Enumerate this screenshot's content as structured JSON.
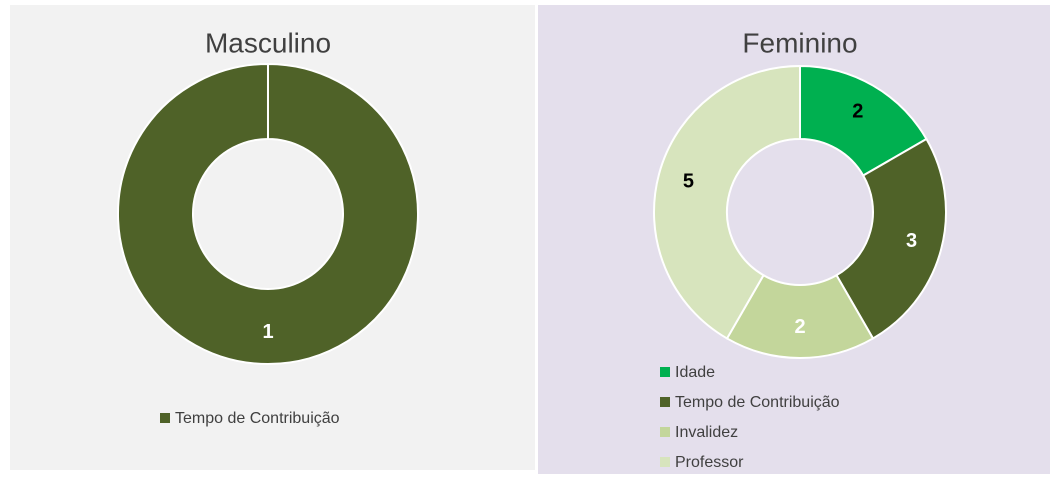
{
  "chart_data": [
    {
      "type": "pie",
      "title": "Masculino",
      "categories": [
        "Tempo de Contribuição"
      ],
      "values": [
        1
      ],
      "colors": [
        "#4f6228"
      ],
      "label_colors": [
        "#ffffff"
      ],
      "legend": "bottom"
    },
    {
      "type": "pie",
      "title": "Feminino",
      "categories": [
        "Idade",
        "Tempo de Contribuição",
        "Invalidez",
        "Professor"
      ],
      "values": [
        2,
        3,
        2,
        5
      ],
      "colors": [
        "#00b050",
        "#4f6228",
        "#c3d69b",
        "#d7e4bd"
      ],
      "label_colors": [
        "#000000",
        "#ffffff",
        "#ffffff",
        "#000000"
      ],
      "legend": "bottom"
    }
  ]
}
